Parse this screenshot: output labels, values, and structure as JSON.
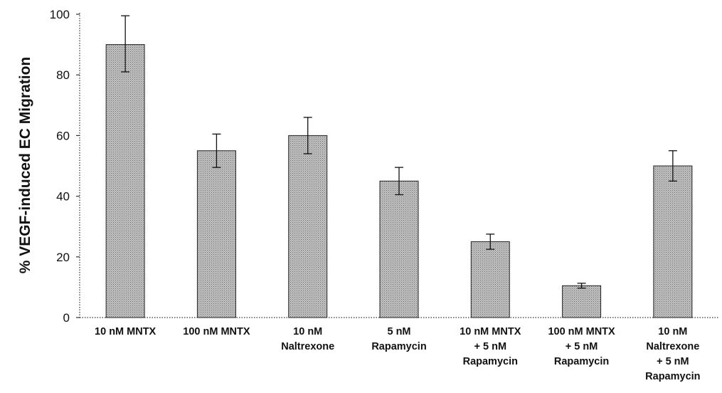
{
  "chart_data": {
    "type": "bar",
    "title": "",
    "xlabel": "",
    "ylabel": "% VEGF-induced EC Migration",
    "ylim": [
      0,
      100
    ],
    "yticks": [
      0,
      20,
      40,
      60,
      80,
      100
    ],
    "grid": false,
    "legend": "none",
    "bar_color": "#b8b8b8",
    "categories": [
      [
        "10 nM MNTX"
      ],
      [
        "100 nM MNTX"
      ],
      [
        "10 nM",
        "Naltrexone"
      ],
      [
        "5 nM",
        "Rapamycin"
      ],
      [
        "10 nM MNTX",
        "+ 5 nM",
        "Rapamycin"
      ],
      [
        "100 nM MNTX",
        "+ 5 nM",
        "Rapamycin"
      ],
      [
        "10 nM",
        "Naltrexone",
        "+ 5 nM",
        "Rapamycin"
      ]
    ],
    "values": [
      90,
      55,
      60,
      45,
      25,
      10.5,
      50
    ],
    "error_upper": [
      9.5,
      5.5,
      6,
      4.5,
      2.5,
      0.8,
      5
    ],
    "error_lower": [
      9,
      5.5,
      6,
      4.5,
      2.5,
      0.8,
      5
    ]
  }
}
